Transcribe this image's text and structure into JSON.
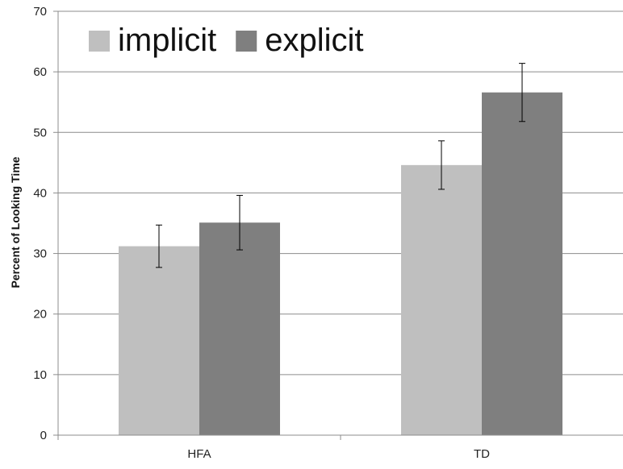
{
  "chart_data": {
    "type": "bar",
    "categories": [
      "HFA",
      "TD"
    ],
    "series": [
      {
        "name": "implicit",
        "values": [
          31.2,
          44.6
        ],
        "error": [
          3.5,
          4.0
        ],
        "color": "#bfbfbf"
      },
      {
        "name": "explicit",
        "values": [
          35.1,
          56.6
        ],
        "error": [
          4.5,
          4.8
        ],
        "color": "#7f7f7f"
      }
    ],
    "ylabel": "Percent of Looking Time",
    "ylim": [
      0,
      70
    ],
    "yticks": [
      0,
      10,
      20,
      30,
      40,
      50,
      60,
      70
    ],
    "grid": true,
    "legend_position": "top-left"
  }
}
